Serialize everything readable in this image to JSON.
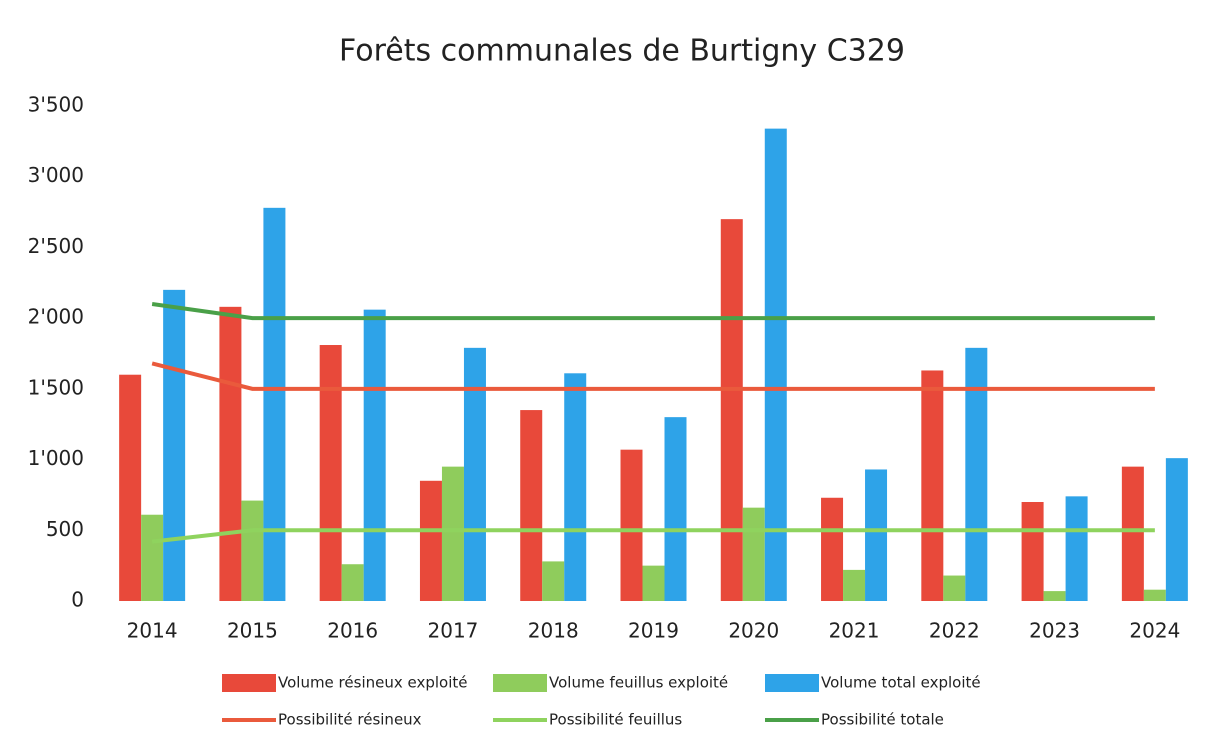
{
  "chart_data": {
    "type": "bar",
    "title": "Forêts communales de Burtigny  C329",
    "categories": [
      "2014",
      "2015",
      "2016",
      "2017",
      "2018",
      "2019",
      "2020",
      "2021",
      "2022",
      "2023",
      "2024"
    ],
    "series": [
      {
        "name": "Volume résineux exploité",
        "type": "bar",
        "color": "#e8493a",
        "values": [
          1600,
          2080,
          1810,
          850,
          1350,
          1070,
          2700,
          730,
          1630,
          700,
          950
        ]
      },
      {
        "name": "Volume feuillus exploité",
        "type": "bar",
        "color": "#8fcc5c",
        "values": [
          610,
          710,
          260,
          950,
          280,
          250,
          660,
          220,
          180,
          70,
          80
        ]
      },
      {
        "name": "Volume total exploité",
        "type": "bar",
        "color": "#2ea3e8",
        "values": [
          2200,
          2780,
          2060,
          1790,
          1610,
          1300,
          3340,
          930,
          1790,
          740,
          1010
        ]
      },
      {
        "name": "Possibilité résineux",
        "type": "line",
        "color": "#ea5a3c",
        "values": [
          1680,
          1500,
          1500,
          1500,
          1500,
          1500,
          1500,
          1500,
          1500,
          1500,
          1500
        ]
      },
      {
        "name": "Possibilité feuillus",
        "type": "line",
        "color": "#8fd35e",
        "values": [
          420,
          500,
          500,
          500,
          500,
          500,
          500,
          500,
          500,
          500,
          500
        ]
      },
      {
        "name": "Possibilité totale",
        "type": "line",
        "color": "#4aa048",
        "values": [
          2100,
          2000,
          2000,
          2000,
          2000,
          2000,
          2000,
          2000,
          2000,
          2000,
          2000
        ]
      }
    ],
    "ylim": [
      0,
      3500
    ],
    "yticks": [
      0,
      500,
      {
        "value": 1000,
        "label": "1'000"
      },
      {
        "value": 1500,
        "label": "1'500"
      },
      {
        "value": 2000,
        "label": "2'000"
      },
      {
        "value": 2500,
        "label": "2'500"
      },
      {
        "value": 3000,
        "label": "3'000"
      },
      {
        "value": 3500,
        "label": "3'500"
      }
    ],
    "grid": false,
    "legend": "bottom"
  }
}
